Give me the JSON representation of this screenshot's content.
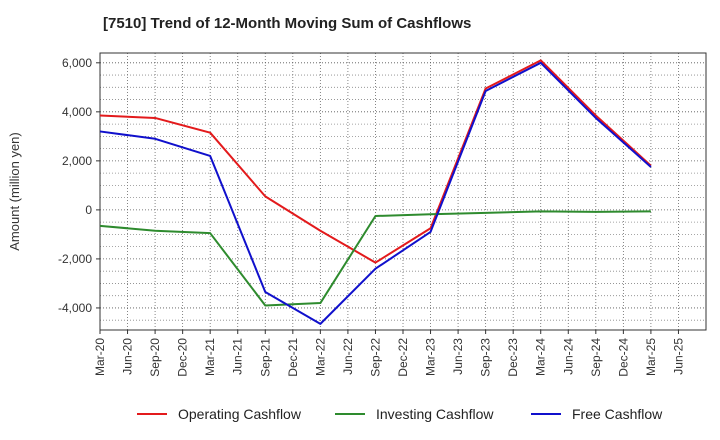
{
  "chart_data": {
    "type": "line",
    "title": "[7510]  Trend of 12-Month Moving Sum of Cashflows",
    "ylabel": "Amount (million yen)",
    "xlabel": "",
    "ylim": [
      -4900,
      6400
    ],
    "yticks": [
      -4000,
      -2000,
      0,
      2000,
      4000,
      6000
    ],
    "ytick_labels": [
      "-4,000",
      "-2,000",
      "0",
      "2,000",
      "4,000",
      "6,000"
    ],
    "grid": true,
    "legend_position": "bottom",
    "categories": [
      "Mar-20",
      "Jun-20",
      "Sep-20",
      "Dec-20",
      "Mar-21",
      "Jun-21",
      "Sep-21",
      "Dec-21",
      "Mar-22",
      "Jun-22",
      "Sep-22",
      "Dec-22",
      "Mar-23",
      "Jun-23",
      "Sep-23",
      "Dec-23",
      "Mar-24",
      "Jun-24",
      "Sep-24",
      "Dec-24",
      "Mar-25",
      "Jun-25"
    ],
    "series": [
      {
        "name": "Operating Cashflow",
        "color": "#e31a1c",
        "points": [
          {
            "x": "Mar-20",
            "y": 3850
          },
          {
            "x": "Sep-20",
            "y": 3750
          },
          {
            "x": "Mar-21",
            "y": 3150
          },
          {
            "x": "Sep-21",
            "y": 550
          },
          {
            "x": "Mar-22",
            "y": -850
          },
          {
            "x": "Sep-22",
            "y": -2150
          },
          {
            "x": "Mar-23",
            "y": -750
          },
          {
            "x": "Sep-23",
            "y": 4950
          },
          {
            "x": "Mar-24",
            "y": 6100
          },
          {
            "x": "Sep-24",
            "y": 3850
          },
          {
            "x": "Mar-25",
            "y": 1800
          }
        ]
      },
      {
        "name": "Investing Cashflow",
        "color": "#2e8b2e",
        "points": [
          {
            "x": "Mar-20",
            "y": -650
          },
          {
            "x": "Sep-20",
            "y": -850
          },
          {
            "x": "Mar-21",
            "y": -950
          },
          {
            "x": "Sep-21",
            "y": -3900
          },
          {
            "x": "Mar-22",
            "y": -3800
          },
          {
            "x": "Sep-22",
            "y": -250
          },
          {
            "x": "Mar-23",
            "y": -180
          },
          {
            "x": "Sep-23",
            "y": -120
          },
          {
            "x": "Mar-24",
            "y": -60
          },
          {
            "x": "Sep-24",
            "y": -80
          },
          {
            "x": "Mar-25",
            "y": -60
          }
        ]
      },
      {
        "name": "Free Cashflow",
        "color": "#1010cc",
        "points": [
          {
            "x": "Mar-20",
            "y": 3200
          },
          {
            "x": "Sep-20",
            "y": 2900
          },
          {
            "x": "Mar-21",
            "y": 2200
          },
          {
            "x": "Sep-21",
            "y": -3350
          },
          {
            "x": "Mar-22",
            "y": -4650
          },
          {
            "x": "Sep-22",
            "y": -2400
          },
          {
            "x": "Mar-23",
            "y": -900
          },
          {
            "x": "Sep-23",
            "y": 4850
          },
          {
            "x": "Mar-24",
            "y": 6000
          },
          {
            "x": "Sep-24",
            "y": 3750
          },
          {
            "x": "Mar-25",
            "y": 1750
          }
        ]
      }
    ]
  }
}
